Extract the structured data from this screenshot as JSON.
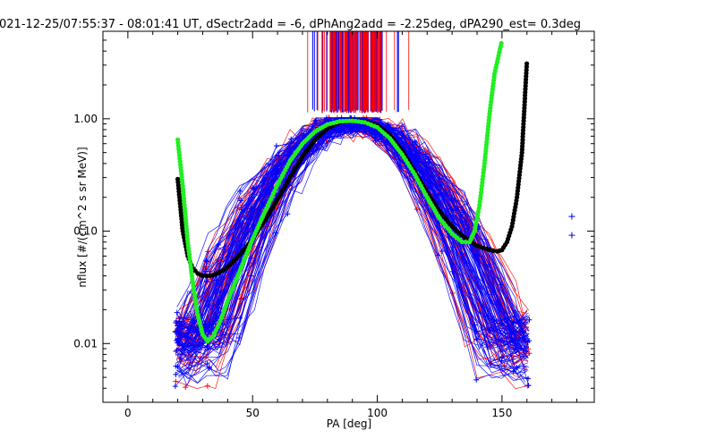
{
  "chart_data": {
    "type": "line",
    "title": "021-12-25/07:55:37 - 08:01:41 UT, dSectr2add = -6, dPhAng2add = -2.25deg, dPA290_est=   0.3deg",
    "xlabel": "PA [deg]",
    "ylabel": "nflux [#/(cm^2 s sr MeV)]",
    "xlim": [
      -10,
      187
    ],
    "ylim_log": [
      0.003,
      6.0
    ],
    "xticks": [
      {
        "v": 0,
        "label": "0"
      },
      {
        "v": 50,
        "label": "50"
      },
      {
        "v": 100,
        "label": "100"
      },
      {
        "v": 150,
        "label": "150"
      }
    ],
    "yticks": [
      {
        "v": 0.01,
        "label": "0.01"
      },
      {
        "v": 0.1,
        "label": "0.10"
      },
      {
        "v": 1,
        "label": "1.00"
      }
    ],
    "grid": false,
    "series": [
      {
        "name": "fit-black",
        "color": "#000000",
        "style": "thick-dots",
        "x": [
          20,
          22,
          24,
          26,
          28,
          30,
          33,
          36,
          40,
          45,
          50,
          55,
          60,
          65,
          70,
          75,
          80,
          85,
          90,
          95,
          100,
          105,
          110,
          115,
          120,
          125,
          130,
          135,
          140,
          145,
          148,
          150,
          152,
          154,
          156,
          158,
          160
        ],
        "y": [
          0.29,
          0.1,
          0.06,
          0.047,
          0.042,
          0.04,
          0.04,
          0.042,
          0.048,
          0.062,
          0.085,
          0.125,
          0.19,
          0.3,
          0.46,
          0.65,
          0.82,
          0.93,
          0.97,
          0.95,
          0.88,
          0.72,
          0.52,
          0.34,
          0.22,
          0.15,
          0.11,
          0.088,
          0.074,
          0.068,
          0.066,
          0.068,
          0.08,
          0.11,
          0.2,
          0.5,
          3.3
        ]
      },
      {
        "name": "fit-green",
        "color": "#22ee22",
        "style": "thick-dots",
        "x": [
          20,
          22,
          24,
          26,
          28,
          30,
          32,
          34,
          36,
          38,
          40,
          45,
          50,
          55,
          60,
          65,
          70,
          75,
          80,
          85,
          90,
          95,
          100,
          105,
          110,
          115,
          120,
          125,
          130,
          134,
          137,
          139,
          141,
          143,
          145,
          147,
          150
        ],
        "y": [
          0.65,
          0.25,
          0.08,
          0.035,
          0.018,
          0.012,
          0.0105,
          0.0115,
          0.014,
          0.018,
          0.024,
          0.045,
          0.085,
          0.15,
          0.26,
          0.42,
          0.6,
          0.77,
          0.89,
          0.95,
          0.96,
          0.93,
          0.84,
          0.67,
          0.48,
          0.32,
          0.2,
          0.13,
          0.095,
          0.08,
          0.08,
          0.1,
          0.17,
          0.4,
          1.1,
          2.5,
          5.0
        ]
      },
      {
        "name": "data-red",
        "color": "#ff0000",
        "style": "lines-plus"
      },
      {
        "name": "data-blue",
        "color": "#0000ff",
        "style": "lines-plus"
      }
    ],
    "isolated_points": [
      {
        "color": "#0000ff",
        "x": 178,
        "y": 0.135
      },
      {
        "color": "#0000ff",
        "x": 178,
        "y": 0.092
      }
    ],
    "spikes": {
      "x_from": 70,
      "x_to": 113,
      "dense_from": 81,
      "dense_to": 102
    }
  }
}
